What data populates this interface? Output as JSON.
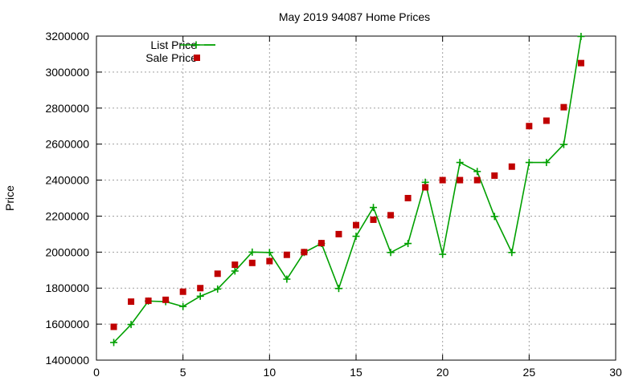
{
  "chart_data": {
    "type": "line",
    "title": "May 2019 94087 Home Prices",
    "xlabel": "",
    "ylabel": "Price",
    "xlim": [
      0,
      30
    ],
    "ylim": [
      1400000,
      3200000
    ],
    "xticks": [
      0,
      5,
      10,
      15,
      20,
      25,
      30
    ],
    "yticks": [
      1400000,
      1600000,
      1800000,
      2000000,
      2200000,
      2400000,
      2600000,
      2800000,
      3000000,
      3200000
    ],
    "grid": true,
    "legend_position": "top-left",
    "series": [
      {
        "name": "List Price",
        "style": "line-plus",
        "color": "#00a000",
        "x": [
          1,
          2,
          3,
          4,
          5,
          6,
          7,
          8,
          9,
          10,
          11,
          12,
          13,
          14,
          15,
          16,
          17,
          18,
          19,
          20,
          21,
          22,
          23,
          24,
          25,
          26,
          27,
          28
        ],
        "y": [
          1498000,
          1598000,
          1728000,
          1725000,
          1698000,
          1755000,
          1795000,
          1895000,
          2000000,
          1998000,
          1850000,
          1998000,
          2048000,
          1798000,
          2088000,
          2248000,
          1998000,
          2048000,
          2388000,
          1988000,
          2498000,
          2448000,
          2198000,
          1998000,
          2498000,
          2498000,
          2598000,
          3198000
        ]
      },
      {
        "name": "Sale Price",
        "style": "square",
        "color": "#c00000",
        "x": [
          1,
          2,
          3,
          4,
          5,
          6,
          7,
          8,
          9,
          10,
          11,
          12,
          13,
          14,
          15,
          16,
          17,
          18,
          19,
          20,
          21,
          22,
          23,
          24,
          25,
          26,
          27,
          28
        ],
        "y": [
          1585000,
          1725000,
          1730000,
          1735000,
          1780000,
          1800000,
          1880000,
          1930000,
          1940000,
          1950000,
          1985000,
          2000000,
          2050000,
          2100000,
          2150000,
          2180000,
          2205000,
          2300000,
          2360000,
          2400000,
          2400000,
          2400000,
          2425000,
          2475000,
          2700000,
          2730000,
          2805000,
          3050000
        ]
      }
    ]
  }
}
